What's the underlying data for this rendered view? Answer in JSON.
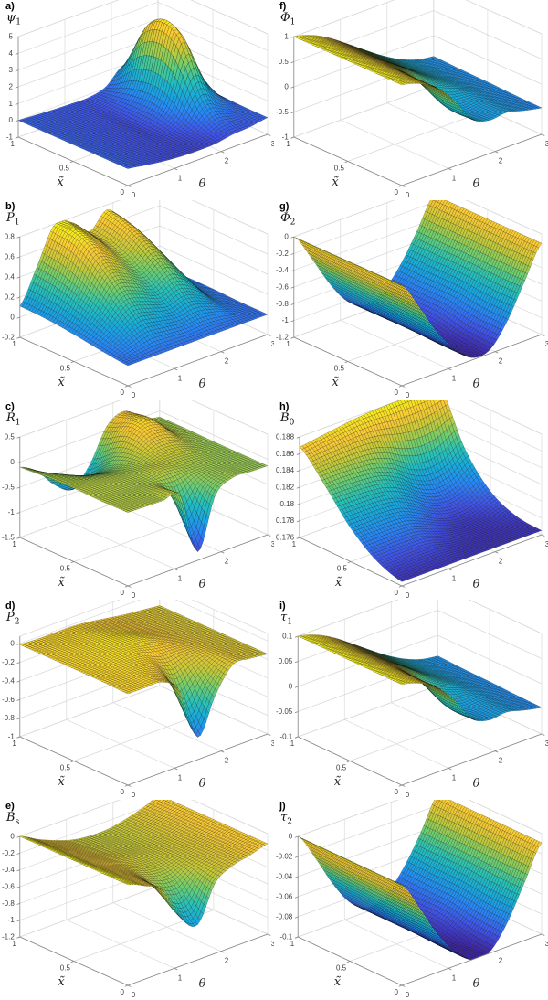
{
  "figure": {
    "background": "#ffffff",
    "grid_color": "#d9d9d9",
    "axis_color": "#878787",
    "tick_label_color": "#404040",
    "colormap": "parula",
    "colormap_stops": [
      [
        62,
        38,
        168
      ],
      [
        64,
        85,
        233
      ],
      [
        40,
        135,
        245
      ],
      [
        24,
        169,
        219
      ],
      [
        40,
        193,
        182
      ],
      [
        111,
        205,
        110
      ],
      [
        196,
        201,
        57
      ],
      [
        248,
        199,
        53
      ],
      [
        246,
        239,
        28
      ]
    ]
  },
  "axes": {
    "xlabel": "x̃",
    "theta_label": "θ",
    "x_ticks": [
      0,
      0.5,
      1
    ],
    "theta_ticks": [
      0,
      1,
      2,
      3
    ]
  },
  "surface_grid": {
    "x": [
      0,
      0.25,
      0.5,
      0.75,
      1
    ],
    "theta": [
      0,
      0.375,
      0.75,
      1.125,
      1.5,
      1.875,
      2.25,
      2.625,
      3
    ]
  },
  "chart_data": [
    {
      "type": "surface",
      "panel_label": "a)",
      "symbol": "ψ",
      "subscript": "1",
      "zlim": [
        -1,
        5
      ],
      "zticks": [
        -1,
        0,
        1,
        2,
        3,
        4,
        5
      ],
      "z": [
        [
          0,
          -0.17,
          -0.32,
          -0.42,
          -0.45,
          -0.42,
          -0.24,
          -0.17,
          0
        ],
        [
          0,
          -0.15,
          -0.27,
          -0.35,
          -0.38,
          -0.09,
          0.92,
          0.36,
          0.02
        ],
        [
          0,
          -0.12,
          -0.22,
          -0.29,
          -0.29,
          0.88,
          4.37,
          1.83,
          0.08
        ],
        [
          0,
          -0.1,
          -0.18,
          -0.23,
          -0.23,
          0.78,
          4.29,
          1.8,
          0.08
        ],
        [
          0,
          -0.07,
          -0.13,
          -0.17,
          -0.18,
          0.08,
          0.96,
          0.39,
          0.02
        ]
      ]
    },
    {
      "type": "surface",
      "panel_label": "f)",
      "symbol": "Φ",
      "subscript": "1",
      "zlim": [
        -1,
        1
      ],
      "zticks": [
        -1,
        -0.5,
        0,
        0.5,
        1
      ],
      "z": [
        [
          1,
          0.9,
          0.69,
          0.31,
          -0.19,
          -0.34,
          -0.31,
          -0.4,
          -0.47
        ],
        [
          1,
          0.9,
          0.69,
          0.32,
          -0.17,
          -0.31,
          -0.3,
          -0.39,
          -0.46
        ],
        [
          1,
          0.9,
          0.71,
          0.46,
          0.19,
          -0.05,
          -0.23,
          -0.37,
          -0.44
        ],
        [
          1,
          0.9,
          0.71,
          0.47,
          0.22,
          -0.02,
          -0.22,
          -0.36,
          -0.43
        ],
        [
          1,
          0.9,
          0.72,
          0.48,
          0.23,
          -0.01,
          -0.21,
          -0.35,
          -0.41
        ]
      ]
    },
    {
      "type": "surface",
      "panel_label": "b)",
      "symbol": "P",
      "subscript": "1",
      "zlim": [
        -0.2,
        0.8
      ],
      "zticks": [
        -0.2,
        0,
        0.2,
        0.4,
        0.6,
        0.8
      ],
      "z": [
        [
          0,
          0,
          0,
          0,
          0,
          0,
          0,
          0,
          0
        ],
        [
          0.03,
          0.13,
          0.24,
          0.21,
          0.17,
          0.21,
          0.15,
          0.04,
          0
        ],
        [
          0.07,
          0.28,
          0.53,
          0.48,
          0.38,
          0.48,
          0.33,
          0.09,
          0.01
        ],
        [
          0.1,
          0.4,
          0.75,
          0.67,
          0.54,
          0.67,
          0.47,
          0.13,
          0.01
        ],
        [
          0.11,
          0.45,
          0.8,
          0.75,
          0.6,
          0.75,
          0.53,
          0.14,
          0.01
        ]
      ]
    },
    {
      "type": "surface",
      "panel_label": "g)",
      "symbol": "Φ",
      "subscript": "2",
      "zlim": [
        -1.2,
        0
      ],
      "zticks": [
        -1.2,
        -1,
        -0.8,
        -0.6,
        -0.4,
        -0.2,
        0
      ],
      "z": [
        [
          0,
          -0.34,
          -0.71,
          -0.99,
          -1.17,
          -1.16,
          -0.9,
          -0.5,
          -0.11
        ],
        [
          0,
          -0.34,
          -0.71,
          -0.99,
          -1.16,
          -1.14,
          -0.89,
          -0.5,
          -0.11
        ],
        [
          0,
          -0.34,
          -0.71,
          -0.99,
          -1.12,
          -1.07,
          -0.84,
          -0.49,
          -0.11
        ],
        [
          0,
          -0.34,
          -0.7,
          -0.99,
          -1.12,
          -1.06,
          -0.84,
          -0.49,
          -0.11
        ],
        [
          0,
          -0.33,
          -0.7,
          -0.99,
          -1.12,
          -1.06,
          -0.83,
          -0.49,
          -0.11
        ]
      ]
    },
    {
      "type": "surface",
      "panel_label": "c)",
      "symbol": "R",
      "subscript": "1",
      "zlim": [
        -1.5,
        0.5
      ],
      "zticks": [
        -1.5,
        -1,
        -0.5,
        0,
        0.5
      ],
      "z": [
        [
          -0.04,
          -0.05,
          -0.06,
          -0.08,
          -1.33,
          -0.34,
          -0.11,
          -0.12,
          -0.13
        ],
        [
          -0.05,
          -0.06,
          -0.07,
          -0.08,
          -0.14,
          -0.11,
          -0.11,
          -0.12,
          -0.13
        ],
        [
          -0.04,
          -0.05,
          -0.07,
          -0.09,
          -0.05,
          0.04,
          0.02,
          -0.09,
          -0.13
        ],
        [
          -0.06,
          -0.14,
          -0.29,
          -0.36,
          -0.16,
          0.29,
          0.32,
          -0.01,
          -0.12
        ],
        [
          -0.1,
          -0.32,
          -0.71,
          -0.92,
          -0.56,
          0.09,
          0.25,
          -0.02,
          -0.12
        ]
      ]
    },
    {
      "type": "surface",
      "panel_label": "h)",
      "symbol": "B",
      "subscript": "0",
      "zlim": [
        0.176,
        0.188
      ],
      "zticks": [
        0.176,
        0.178,
        0.18,
        0.182,
        0.184,
        0.186,
        0.188
      ],
      "z": [
        [
          0.1765,
          0.1765,
          0.1765,
          0.1765,
          0.1765,
          0.1765,
          0.1765,
          0.1765,
          0.1765
        ],
        [
          0.1776,
          0.1776,
          0.1776,
          0.1775,
          0.1769,
          0.1766,
          0.1765,
          0.1766,
          0.1768
        ],
        [
          0.18,
          0.18,
          0.18,
          0.1797,
          0.1787,
          0.1776,
          0.1771,
          0.1774,
          0.1783
        ],
        [
          0.1836,
          0.1836,
          0.1835,
          0.1832,
          0.1823,
          0.1808,
          0.18,
          0.1804,
          0.1819
        ],
        [
          0.1868,
          0.1871,
          0.1874,
          0.1877,
          0.1879,
          0.188,
          0.1881,
          0.1881,
          0.1881
        ]
      ]
    },
    {
      "type": "surface",
      "panel_label": "d)",
      "symbol": "P",
      "subscript": "2",
      "zlim": [
        -1,
        0.08
      ],
      "zticks": [
        -1,
        -0.8,
        -0.6,
        -0.4,
        -0.2,
        0
      ],
      "z": [
        [
          -0.02,
          -0.02,
          -0.03,
          -0.2,
          -0.76,
          -0.38,
          -0.12,
          -0.12,
          -0.14
        ],
        [
          -0.01,
          -0.01,
          0,
          -0.04,
          -0.19,
          -0.13,
          -0.1,
          -0.12,
          -0.14
        ],
        [
          -0.01,
          0,
          0.02,
          0.03,
          0.01,
          -0.04,
          -0.09,
          -0.12,
          -0.14
        ],
        [
          -0.01,
          0,
          0.01,
          0.02,
          -0.01,
          -0.05,
          -0.09,
          -0.12,
          -0.14
        ],
        [
          -0.01,
          -0.02,
          -0.02,
          -0.02,
          -0.04,
          -0.07,
          -0.1,
          -0.12,
          -0.14
        ]
      ]
    },
    {
      "type": "surface",
      "panel_label": "i)",
      "symbol": "τ",
      "subscript": "1",
      "zlim": [
        -0.1,
        0.1
      ],
      "zticks": [
        -0.1,
        -0.05,
        0,
        0.05,
        0.1
      ],
      "z": [
        [
          0.1,
          0.09,
          0.069,
          0.031,
          -0.019,
          -0.034,
          -0.031,
          -0.04,
          -0.047
        ],
        [
          0.1,
          0.09,
          0.069,
          0.032,
          -0.017,
          -0.031,
          -0.03,
          -0.039,
          -0.046
        ],
        [
          0.1,
          0.09,
          0.071,
          0.046,
          0.019,
          -0.005,
          -0.023,
          -0.037,
          -0.044
        ],
        [
          0.1,
          0.09,
          0.071,
          0.047,
          0.022,
          -0.002,
          -0.022,
          -0.036,
          -0.043
        ],
        [
          0.1,
          0.09,
          0.072,
          0.048,
          0.023,
          -0.001,
          -0.021,
          -0.035,
          -0.041
        ]
      ]
    },
    {
      "type": "surface",
      "panel_label": "e)",
      "symbol": "B",
      "subscript": "s",
      "zlim": [
        -1.2,
        0
      ],
      "zticks": [
        -1.2,
        -1,
        -0.8,
        -0.6,
        -0.4,
        -0.2,
        0
      ],
      "z": [
        [
          0,
          -0.09,
          -0.22,
          -0.62,
          -0.78,
          -0.36,
          -0.23,
          -0.18,
          -0.12
        ],
        [
          0,
          -0.09,
          -0.19,
          -0.34,
          -0.39,
          -0.29,
          -0.23,
          -0.18,
          -0.12
        ],
        [
          0,
          -0.1,
          -0.18,
          -0.25,
          -0.28,
          -0.27,
          -0.24,
          -0.19,
          -0.12
        ],
        [
          0,
          -0.1,
          -0.19,
          -0.26,
          -0.29,
          -0.29,
          -0.25,
          -0.19,
          -0.12
        ],
        [
          0,
          -0.11,
          -0.2,
          -0.27,
          -0.3,
          -0.3,
          -0.26,
          -0.2,
          -0.12
        ]
      ]
    },
    {
      "type": "surface",
      "panel_label": "j)",
      "symbol": "τ",
      "subscript": "2",
      "zlim": [
        -0.1,
        0
      ],
      "zticks": [
        -0.1,
        -0.08,
        -0.06,
        -0.04,
        -0.02,
        0
      ],
      "z": [
        [
          0,
          -0.029,
          -0.061,
          -0.085,
          -0.1,
          -0.099,
          -0.077,
          -0.043,
          -0.009
        ],
        [
          0,
          -0.029,
          -0.061,
          -0.085,
          -0.099,
          -0.097,
          -0.076,
          -0.043,
          -0.009
        ],
        [
          0,
          -0.029,
          -0.061,
          -0.085,
          -0.096,
          -0.091,
          -0.072,
          -0.042,
          -0.009
        ],
        [
          0,
          -0.029,
          -0.06,
          -0.085,
          -0.096,
          -0.091,
          -0.072,
          -0.042,
          -0.009
        ],
        [
          0,
          -0.028,
          -0.06,
          -0.085,
          -0.096,
          -0.091,
          -0.071,
          -0.042,
          -0.009
        ]
      ]
    }
  ]
}
